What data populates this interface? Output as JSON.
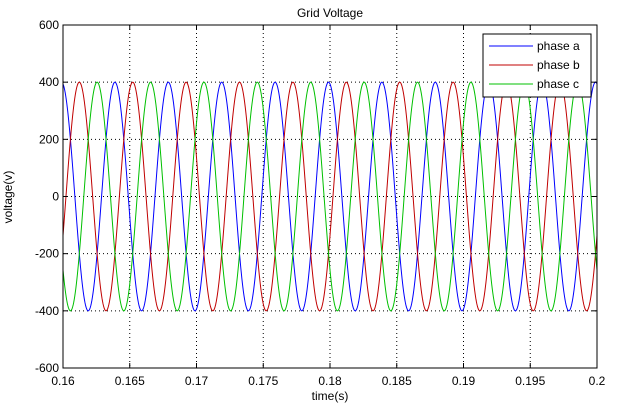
{
  "chart_data": {
    "type": "line",
    "title": "Grid Voltage",
    "xlabel": "time(s)",
    "ylabel": "voltage(v)",
    "xlim": [
      0.16,
      0.2
    ],
    "ylim": [
      -600,
      600
    ],
    "xticks": [
      0.16,
      0.165,
      0.17,
      0.175,
      0.18,
      0.185,
      0.19,
      0.195,
      0.2
    ],
    "xtick_labels": [
      "0.16",
      "0.165",
      "0.17",
      "0.175",
      "0.18",
      "0.185",
      "0.19",
      "0.195",
      "0.2"
    ],
    "yticks": [
      -600,
      -400,
      -200,
      0,
      200,
      400,
      600
    ],
    "ytick_labels": [
      "-600",
      "-400",
      "-200",
      "0",
      "200",
      "400",
      "600"
    ],
    "grid": true,
    "legend_position": "top-right",
    "series": [
      {
        "name": "phase a",
        "color": "#0000ff",
        "amplitude": 400,
        "frequency_hz": 250,
        "phase_deg": 100
      },
      {
        "name": "phase b",
        "color": "#c00000",
        "amplitude": 400,
        "frequency_hz": 250,
        "phase_deg": -20
      },
      {
        "name": "phase c",
        "color": "#00c000",
        "amplitude": 400,
        "frequency_hz": 250,
        "phase_deg": 220
      }
    ]
  }
}
